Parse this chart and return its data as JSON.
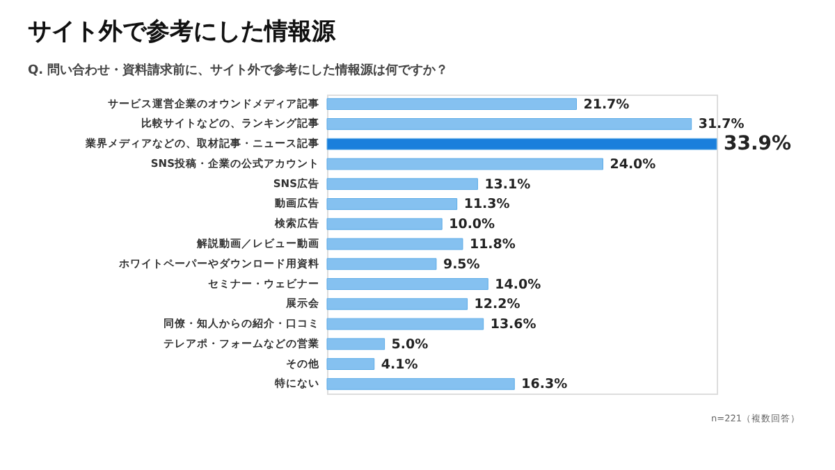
{
  "chart_data": {
    "type": "bar",
    "orientation": "horizontal",
    "title": "サイト外で参考にした情報源",
    "subtitle": "Q. 問い合わせ・資料請求前に、サイト外で参考にした情報源は何ですか？",
    "categories": [
      "サービス運営企業のオウンドメディア記事",
      "比較サイトなどの、ランキング記事",
      "業界メディアなどの、取材記事・ニュース記事",
      "SNS投稿・企業の公式アカウント",
      "SNS広告",
      "動画広告",
      "検索広告",
      "解説動画／レビュー動画",
      "ホワイトペーパーやダウンロード用資料",
      "セミナー・ウェビナー",
      "展示会",
      "同僚・知人からの紹介・口コミ",
      "テレアポ・フォームなどの営業",
      "その他",
      "特にない"
    ],
    "values": [
      21.7,
      31.7,
      33.9,
      24.0,
      13.1,
      11.3,
      10.0,
      11.8,
      9.5,
      14.0,
      12.2,
      13.6,
      5.0,
      4.1,
      16.3
    ],
    "value_labels": [
      "21.7%",
      "31.7%",
      "33.9%",
      "24.0%",
      "13.1%",
      "11.3%",
      "10.0%",
      "11.8%",
      "9.5%",
      "14.0%",
      "12.2%",
      "13.6%",
      "5.0%",
      "4.1%",
      "16.3%"
    ],
    "colors": [
      "#85c1f0",
      "#85c1f0",
      "#1a7fdc",
      "#85c1f0",
      "#85c1f0",
      "#85c1f0",
      "#85c1f0",
      "#85c1f0",
      "#85c1f0",
      "#85c1f0",
      "#85c1f0",
      "#85c1f0",
      "#85c1f0",
      "#85c1f0",
      "#85c1f0"
    ],
    "xlim": [
      0,
      33.9
    ],
    "tick_labels": "y",
    "annotations": [
      "n=221（複数回答）"
    ]
  }
}
